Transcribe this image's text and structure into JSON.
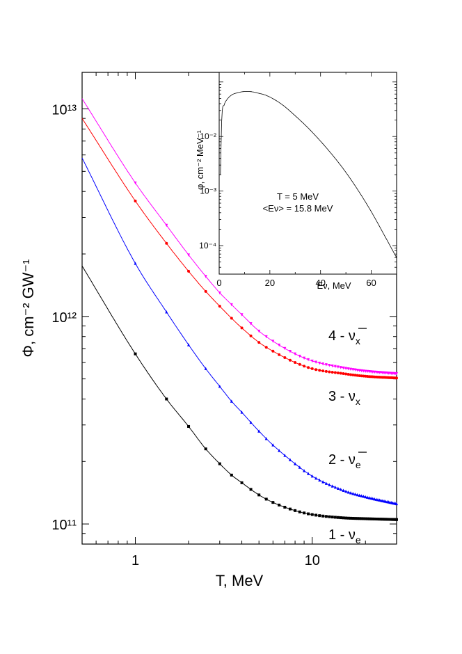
{
  "chart_data": [
    {
      "type": "line",
      "xlabel": "T, MeV",
      "ylabel": "Φ, cm⁻² GW⁻¹",
      "x_scale": "log",
      "y_scale": "log",
      "xlim": [
        0.5,
        30
      ],
      "ylim": [
        80000000000.0,
        15000000000000.0
      ],
      "x_tick_labels": [
        "1",
        "10"
      ],
      "y_tick_labels": [
        "10¹¹",
        "10¹²",
        "10¹³"
      ],
      "grid": false,
      "series": [
        {
          "name": "1 - νe",
          "color": "#000000",
          "marker": "square",
          "x": [
            0.5,
            1,
            1.5,
            2,
            2.5,
            3,
            3.5,
            4,
            5,
            6,
            8,
            10,
            15,
            20,
            30
          ],
          "y": [
            1750000000000.0,
            660000000000.0,
            400000000000.0,
            295000000000.0,
            230000000000.0,
            195000000000.0,
            172000000000.0,
            158000000000.0,
            138000000000.0,
            127000000000.0,
            116000000000.0,
            111000000000.0,
            107000000000.0,
            106000000000.0,
            105000000000.0
          ]
        },
        {
          "name": "2 - ν̄e",
          "color": "#0000ff",
          "marker": "triangle-up",
          "x": [
            0.5,
            1,
            1.5,
            2,
            2.5,
            3,
            3.5,
            4,
            5,
            6,
            8,
            10,
            15,
            20,
            30
          ],
          "y": [
            5800000000000.0,
            1800000000000.0,
            1050000000000.0,
            730000000000.0,
            560000000000.0,
            460000000000.0,
            390000000000.0,
            345000000000.0,
            280000000000.0,
            240000000000.0,
            195000000000.0,
            170000000000.0,
            145000000000.0,
            135000000000.0,
            125000000000.0
          ]
        },
        {
          "name": "3 - νx",
          "color": "#ff0000",
          "marker": "circle",
          "x": [
            0.5,
            1,
            1.5,
            2,
            2.5,
            3,
            3.5,
            4,
            5,
            6,
            8,
            10,
            15,
            20,
            30
          ],
          "y": [
            9000000000000.0,
            3600000000000.0,
            2250000000000.0,
            1650000000000.0,
            1320000000000.0,
            1120000000000.0,
            980000000000.0,
            880000000000.0,
            750000000000.0,
            680000000000.0,
            600000000000.0,
            560000000000.0,
            530000000000.0,
            515000000000.0,
            505000000000.0
          ]
        },
        {
          "name": "4 - ν̄x",
          "color": "#ff00ff",
          "marker": "triangle-down",
          "x": [
            0.5,
            1,
            1.5,
            2,
            2.5,
            3,
            3.5,
            4,
            5,
            6,
            8,
            10,
            15,
            20,
            30
          ],
          "y": [
            11200000000000.0,
            4400000000000.0,
            2750000000000.0,
            1980000000000.0,
            1560000000000.0,
            1300000000000.0,
            1140000000000.0,
            1020000000000.0,
            850000000000.0,
            760000000000.0,
            660000000000.0,
            610000000000.0,
            565000000000.0,
            545000000000.0,
            530000000000.0
          ]
        }
      ],
      "series_labels": [
        {
          "prefix": "1 - ν",
          "sub": "e",
          "bar": false
        },
        {
          "prefix": "2 - ν",
          "sub": "e",
          "bar": true
        },
        {
          "prefix": "3 - ν",
          "sub": "x",
          "bar": false
        },
        {
          "prefix": "4 - ν",
          "sub": "x",
          "bar": true
        }
      ]
    },
    {
      "type": "line",
      "role": "inset",
      "xlabel": "Eν, MeV",
      "ylabel": "φ, cm⁻² MeV⁻¹",
      "y_scale": "log",
      "xlim": [
        0,
        70
      ],
      "ylim": [
        3e-05,
        0.15
      ],
      "x_tick_labels": [
        "0",
        "20",
        "40",
        "60"
      ],
      "y_tick_labels": [
        "10⁻⁴",
        "10⁻³",
        "10⁻²"
      ],
      "annotation": [
        "T = 5 MeV",
        "<Eν> = 15.8 MeV"
      ],
      "series": [
        {
          "color": "#000000",
          "x": [
            0.5,
            1,
            2,
            3,
            5,
            7,
            9,
            11,
            13,
            15,
            18,
            21,
            25,
            30,
            35,
            40,
            45,
            50,
            55,
            60,
            65,
            70
          ],
          "y": [
            0.002,
            0.02,
            0.038,
            0.047,
            0.058,
            0.063,
            0.066,
            0.067,
            0.066,
            0.063,
            0.058,
            0.05,
            0.038,
            0.024,
            0.0145,
            0.0082,
            0.0044,
            0.0022,
            0.001,
            0.00042,
            0.00016,
            6e-05
          ]
        }
      ]
    }
  ]
}
